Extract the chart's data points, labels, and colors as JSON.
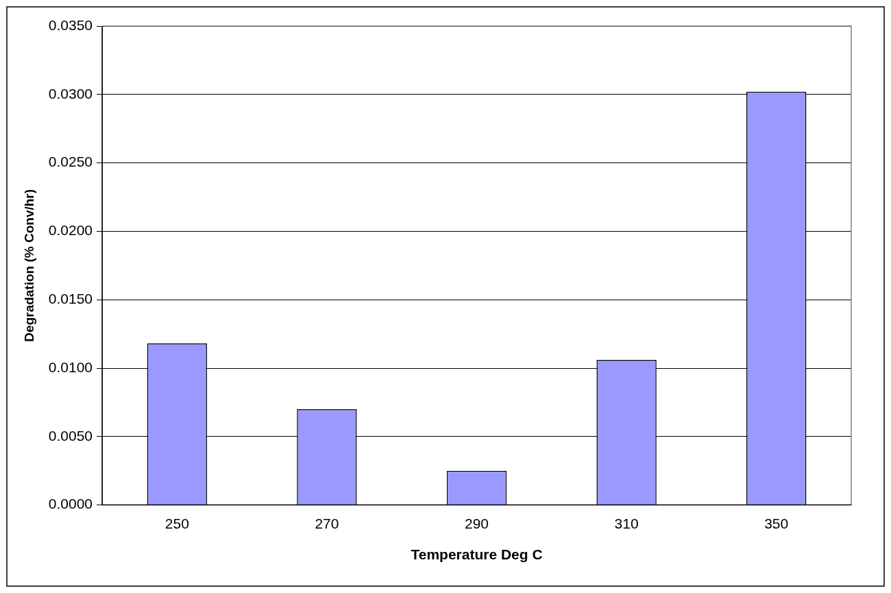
{
  "chart_data": {
    "type": "bar",
    "xlabel": "Temperature Deg C",
    "ylabel": "Degradation (% Conv/hr)",
    "categories": [
      "250",
      "270",
      "290",
      "310",
      "350"
    ],
    "values": [
      0.0118,
      0.007,
      0.0025,
      0.0106,
      0.0302
    ],
    "color": "#9999ff",
    "ylim": [
      0,
      0.035
    ],
    "yticks": [
      {
        "value": 0,
        "label": "0.0000"
      },
      {
        "value": 0.005,
        "label": "0.0050"
      },
      {
        "value": 0.01,
        "label": "0.0100"
      },
      {
        "value": 0.015,
        "label": "0.0150"
      },
      {
        "value": 0.02,
        "label": "0.0200"
      },
      {
        "value": 0.025,
        "label": "0.0250"
      },
      {
        "value": 0.03,
        "label": "0.0300"
      },
      {
        "value": 0.035,
        "label": "0.0350"
      }
    ],
    "grid": "y",
    "legend": false
  }
}
